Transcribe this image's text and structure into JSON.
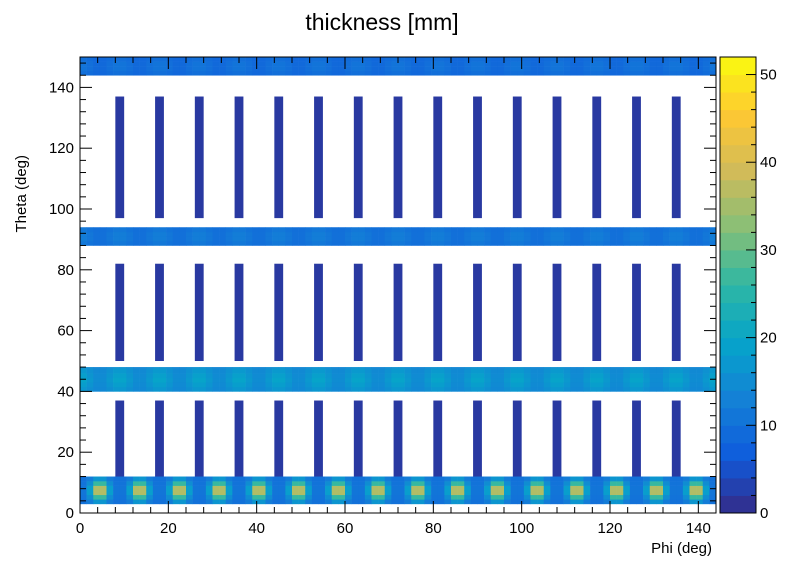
{
  "chart_data": {
    "type": "heatmap",
    "title": "thickness [mm]",
    "xlabel": "Phi (deg)",
    "ylabel": "Theta (deg)",
    "xlim": [
      0,
      144
    ],
    "ylim": [
      0,
      150
    ],
    "x_ticks": [
      "0",
      "20",
      "40",
      "60",
      "80",
      "100",
      "120",
      "140"
    ],
    "y_ticks": [
      "0",
      "20",
      "40",
      "60",
      "80",
      "100",
      "120",
      "140"
    ],
    "colorbar": {
      "range": [
        0,
        52
      ],
      "ticks": [
        "0",
        "10",
        "20",
        "30",
        "40",
        "50"
      ],
      "palette": [
        "#352a87",
        "#0f5cdd",
        "#1481d6",
        "#06a4ca",
        "#2eb7a4",
        "#87bf77",
        "#d1bb59",
        "#fec832",
        "#f9fb0e"
      ]
    },
    "bands": [
      {
        "theta_range": [
          3,
          12
        ],
        "thickness_range": [
          10,
          42
        ],
        "note": "periodic peaks every ~9 deg in phi"
      },
      {
        "theta_range": [
          40,
          48
        ],
        "thickness_range": [
          13,
          22
        ]
      },
      {
        "theta_range": [
          88,
          94
        ],
        "thickness_range": [
          9,
          14
        ]
      },
      {
        "theta_range": [
          144,
          150
        ],
        "thickness_range": [
          8,
          12
        ]
      }
    ],
    "columns": {
      "phi_centers": [
        9,
        18,
        27,
        36,
        45,
        54,
        63,
        72,
        81,
        90,
        99,
        108,
        117,
        126,
        135
      ],
      "phi_width": 2,
      "theta_segments": [
        [
          11,
          37
        ],
        [
          50,
          82
        ],
        [
          97,
          137
        ]
      ],
      "thickness": 2
    }
  }
}
